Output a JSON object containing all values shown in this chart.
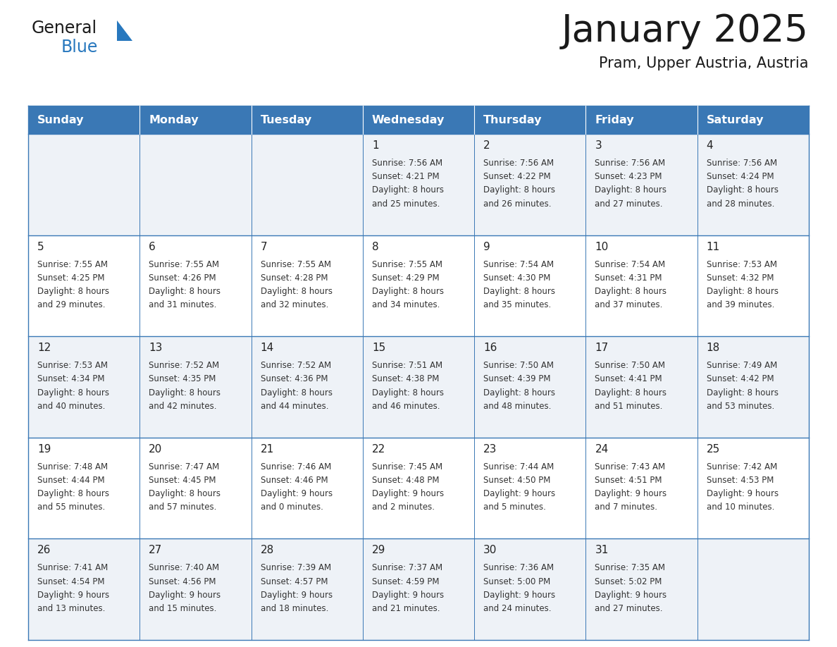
{
  "title": "January 2025",
  "subtitle": "Pram, Upper Austria, Austria",
  "days_of_week": [
    "Sunday",
    "Monday",
    "Tuesday",
    "Wednesday",
    "Thursday",
    "Friday",
    "Saturday"
  ],
  "header_bg": "#3a78b5",
  "header_text_color": "#ffffff",
  "cell_bg_odd": "#eef2f7",
  "cell_bg_even": "#ffffff",
  "cell_border_color": "#3a78b5",
  "title_color": "#1a1a1a",
  "subtitle_color": "#1a1a1a",
  "day_number_color": "#222222",
  "cell_text_color": "#333333",
  "logo_general_color": "#1a1a1a",
  "logo_blue_color": "#2878be",
  "calendar": [
    [
      {
        "day": null,
        "lines": []
      },
      {
        "day": null,
        "lines": []
      },
      {
        "day": null,
        "lines": []
      },
      {
        "day": 1,
        "lines": [
          "Sunrise: 7:56 AM",
          "Sunset: 4:21 PM",
          "Daylight: 8 hours",
          "and 25 minutes."
        ]
      },
      {
        "day": 2,
        "lines": [
          "Sunrise: 7:56 AM",
          "Sunset: 4:22 PM",
          "Daylight: 8 hours",
          "and 26 minutes."
        ]
      },
      {
        "day": 3,
        "lines": [
          "Sunrise: 7:56 AM",
          "Sunset: 4:23 PM",
          "Daylight: 8 hours",
          "and 27 minutes."
        ]
      },
      {
        "day": 4,
        "lines": [
          "Sunrise: 7:56 AM",
          "Sunset: 4:24 PM",
          "Daylight: 8 hours",
          "and 28 minutes."
        ]
      }
    ],
    [
      {
        "day": 5,
        "lines": [
          "Sunrise: 7:55 AM",
          "Sunset: 4:25 PM",
          "Daylight: 8 hours",
          "and 29 minutes."
        ]
      },
      {
        "day": 6,
        "lines": [
          "Sunrise: 7:55 AM",
          "Sunset: 4:26 PM",
          "Daylight: 8 hours",
          "and 31 minutes."
        ]
      },
      {
        "day": 7,
        "lines": [
          "Sunrise: 7:55 AM",
          "Sunset: 4:28 PM",
          "Daylight: 8 hours",
          "and 32 minutes."
        ]
      },
      {
        "day": 8,
        "lines": [
          "Sunrise: 7:55 AM",
          "Sunset: 4:29 PM",
          "Daylight: 8 hours",
          "and 34 minutes."
        ]
      },
      {
        "day": 9,
        "lines": [
          "Sunrise: 7:54 AM",
          "Sunset: 4:30 PM",
          "Daylight: 8 hours",
          "and 35 minutes."
        ]
      },
      {
        "day": 10,
        "lines": [
          "Sunrise: 7:54 AM",
          "Sunset: 4:31 PM",
          "Daylight: 8 hours",
          "and 37 minutes."
        ]
      },
      {
        "day": 11,
        "lines": [
          "Sunrise: 7:53 AM",
          "Sunset: 4:32 PM",
          "Daylight: 8 hours",
          "and 39 minutes."
        ]
      }
    ],
    [
      {
        "day": 12,
        "lines": [
          "Sunrise: 7:53 AM",
          "Sunset: 4:34 PM",
          "Daylight: 8 hours",
          "and 40 minutes."
        ]
      },
      {
        "day": 13,
        "lines": [
          "Sunrise: 7:52 AM",
          "Sunset: 4:35 PM",
          "Daylight: 8 hours",
          "and 42 minutes."
        ]
      },
      {
        "day": 14,
        "lines": [
          "Sunrise: 7:52 AM",
          "Sunset: 4:36 PM",
          "Daylight: 8 hours",
          "and 44 minutes."
        ]
      },
      {
        "day": 15,
        "lines": [
          "Sunrise: 7:51 AM",
          "Sunset: 4:38 PM",
          "Daylight: 8 hours",
          "and 46 minutes."
        ]
      },
      {
        "day": 16,
        "lines": [
          "Sunrise: 7:50 AM",
          "Sunset: 4:39 PM",
          "Daylight: 8 hours",
          "and 48 minutes."
        ]
      },
      {
        "day": 17,
        "lines": [
          "Sunrise: 7:50 AM",
          "Sunset: 4:41 PM",
          "Daylight: 8 hours",
          "and 51 minutes."
        ]
      },
      {
        "day": 18,
        "lines": [
          "Sunrise: 7:49 AM",
          "Sunset: 4:42 PM",
          "Daylight: 8 hours",
          "and 53 minutes."
        ]
      }
    ],
    [
      {
        "day": 19,
        "lines": [
          "Sunrise: 7:48 AM",
          "Sunset: 4:44 PM",
          "Daylight: 8 hours",
          "and 55 minutes."
        ]
      },
      {
        "day": 20,
        "lines": [
          "Sunrise: 7:47 AM",
          "Sunset: 4:45 PM",
          "Daylight: 8 hours",
          "and 57 minutes."
        ]
      },
      {
        "day": 21,
        "lines": [
          "Sunrise: 7:46 AM",
          "Sunset: 4:46 PM",
          "Daylight: 9 hours",
          "and 0 minutes."
        ]
      },
      {
        "day": 22,
        "lines": [
          "Sunrise: 7:45 AM",
          "Sunset: 4:48 PM",
          "Daylight: 9 hours",
          "and 2 minutes."
        ]
      },
      {
        "day": 23,
        "lines": [
          "Sunrise: 7:44 AM",
          "Sunset: 4:50 PM",
          "Daylight: 9 hours",
          "and 5 minutes."
        ]
      },
      {
        "day": 24,
        "lines": [
          "Sunrise: 7:43 AM",
          "Sunset: 4:51 PM",
          "Daylight: 9 hours",
          "and 7 minutes."
        ]
      },
      {
        "day": 25,
        "lines": [
          "Sunrise: 7:42 AM",
          "Sunset: 4:53 PM",
          "Daylight: 9 hours",
          "and 10 minutes."
        ]
      }
    ],
    [
      {
        "day": 26,
        "lines": [
          "Sunrise: 7:41 AM",
          "Sunset: 4:54 PM",
          "Daylight: 9 hours",
          "and 13 minutes."
        ]
      },
      {
        "day": 27,
        "lines": [
          "Sunrise: 7:40 AM",
          "Sunset: 4:56 PM",
          "Daylight: 9 hours",
          "and 15 minutes."
        ]
      },
      {
        "day": 28,
        "lines": [
          "Sunrise: 7:39 AM",
          "Sunset: 4:57 PM",
          "Daylight: 9 hours",
          "and 18 minutes."
        ]
      },
      {
        "day": 29,
        "lines": [
          "Sunrise: 7:37 AM",
          "Sunset: 4:59 PM",
          "Daylight: 9 hours",
          "and 21 minutes."
        ]
      },
      {
        "day": 30,
        "lines": [
          "Sunrise: 7:36 AM",
          "Sunset: 5:00 PM",
          "Daylight: 9 hours",
          "and 24 minutes."
        ]
      },
      {
        "day": 31,
        "lines": [
          "Sunrise: 7:35 AM",
          "Sunset: 5:02 PM",
          "Daylight: 9 hours",
          "and 27 minutes."
        ]
      },
      {
        "day": null,
        "lines": []
      }
    ]
  ]
}
